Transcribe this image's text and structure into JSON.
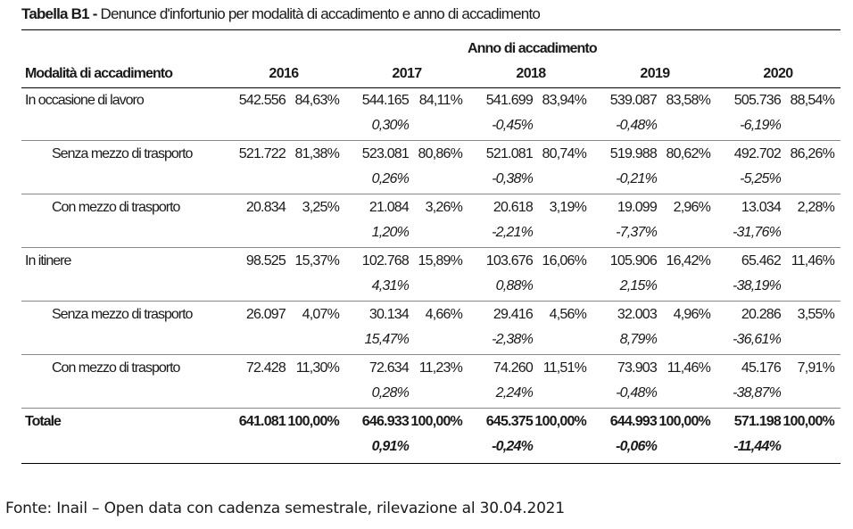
{
  "title": {
    "lead": "Tabella B1 -",
    "text": " Denunce d'infortunio per modalità di accadimento e anno di accadimento"
  },
  "header": {
    "group": "Anno di accadimento",
    "row_label": "Modalità di accadimento",
    "years": [
      "2016",
      "2017",
      "2018",
      "2019",
      "2020"
    ]
  },
  "rows": [
    {
      "label": "In occasione di lavoro",
      "kind": "main",
      "values": [
        {
          "count": "542.556",
          "pct": "84,63%",
          "var": ""
        },
        {
          "count": "544.165",
          "pct": "84,11%",
          "var": "0,30%"
        },
        {
          "count": "541.699",
          "pct": "83,94%",
          "var": "-0,45%"
        },
        {
          "count": "539.087",
          "pct": "83,58%",
          "var": "-0,48%"
        },
        {
          "count": "505.736",
          "pct": "88,54%",
          "var": "-6,19%"
        }
      ]
    },
    {
      "label": "Senza mezzo di trasporto",
      "kind": "sub",
      "values": [
        {
          "count": "521.722",
          "pct": "81,38%",
          "var": ""
        },
        {
          "count": "523.081",
          "pct": "80,86%",
          "var": "0,26%"
        },
        {
          "count": "521.081",
          "pct": "80,74%",
          "var": "-0,38%"
        },
        {
          "count": "519.988",
          "pct": "80,62%",
          "var": "-0,21%"
        },
        {
          "count": "492.702",
          "pct": "86,26%",
          "var": "-5,25%"
        }
      ]
    },
    {
      "label": "Con mezzo di trasporto",
      "kind": "sub",
      "values": [
        {
          "count": "20.834",
          "pct": "3,25%",
          "var": ""
        },
        {
          "count": "21.084",
          "pct": "3,26%",
          "var": "1,20%"
        },
        {
          "count": "20.618",
          "pct": "3,19%",
          "var": "-2,21%"
        },
        {
          "count": "19.099",
          "pct": "2,96%",
          "var": "-7,37%"
        },
        {
          "count": "13.034",
          "pct": "2,28%",
          "var": "-31,76%"
        }
      ]
    },
    {
      "label": "In itinere",
      "kind": "main",
      "values": [
        {
          "count": "98.525",
          "pct": "15,37%",
          "var": ""
        },
        {
          "count": "102.768",
          "pct": "15,89%",
          "var": "4,31%"
        },
        {
          "count": "103.676",
          "pct": "16,06%",
          "var": "0,88%"
        },
        {
          "count": "105.906",
          "pct": "16,42%",
          "var": "2,15%"
        },
        {
          "count": "65.462",
          "pct": "11,46%",
          "var": "-38,19%"
        }
      ]
    },
    {
      "label": "Senza mezzo di trasporto",
      "kind": "sub",
      "values": [
        {
          "count": "26.097",
          "pct": "4,07%",
          "var": ""
        },
        {
          "count": "30.134",
          "pct": "4,66%",
          "var": "15,47%"
        },
        {
          "count": "29.416",
          "pct": "4,56%",
          "var": "-2,38%"
        },
        {
          "count": "32.003",
          "pct": "4,96%",
          "var": "8,79%"
        },
        {
          "count": "20.286",
          "pct": "3,55%",
          "var": "-36,61%"
        }
      ]
    },
    {
      "label": "Con mezzo di trasporto",
      "kind": "sub",
      "values": [
        {
          "count": "72.428",
          "pct": "11,30%",
          "var": ""
        },
        {
          "count": "72.634",
          "pct": "11,23%",
          "var": "0,28%"
        },
        {
          "count": "74.260",
          "pct": "11,51%",
          "var": "2,24%"
        },
        {
          "count": "73.903",
          "pct": "11,46%",
          "var": "-0,48%"
        },
        {
          "count": "45.176",
          "pct": "7,91%",
          "var": "-38,87%"
        }
      ]
    },
    {
      "label": "Totale",
      "kind": "total",
      "values": [
        {
          "count": "641.081",
          "pct": "100,00%",
          "var": ""
        },
        {
          "count": "646.933",
          "pct": "100,00%",
          "var": "0,91%"
        },
        {
          "count": "645.375",
          "pct": "100,00%",
          "var": "-0,24%"
        },
        {
          "count": "644.993",
          "pct": "100,00%",
          "var": "-0,06%"
        },
        {
          "count": "571.198",
          "pct": "100,00%",
          "var": "-11,44%"
        }
      ]
    }
  ],
  "source": "Fonte: Inail – Open data con cadenza semestrale, rilevazione al 30.04.2021"
}
